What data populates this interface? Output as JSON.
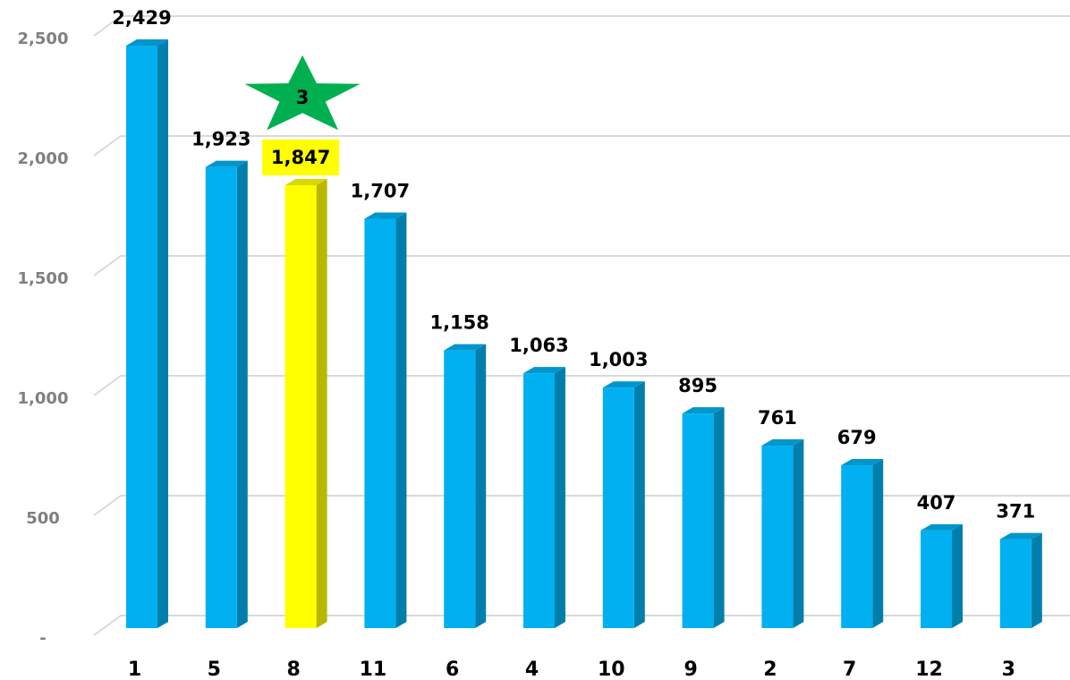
{
  "chart_data": {
    "type": "bar3d",
    "categories": [
      "1",
      "5",
      "8",
      "11",
      "6",
      "4",
      "10",
      "9",
      "2",
      "7",
      "12",
      "3"
    ],
    "values": [
      2429,
      1923,
      1847,
      1707,
      1158,
      1063,
      1003,
      895,
      761,
      679,
      407,
      371
    ],
    "value_labels": [
      "2,429",
      "1,923",
      "1,847",
      "1,707",
      "1,158",
      "1,063",
      "1,003",
      "895",
      "761",
      "679",
      "407",
      "371"
    ],
    "colors": [
      "#00b0f0",
      "#00b0f0",
      "#ffff00",
      "#00b0f0",
      "#00b0f0",
      "#00b0f0",
      "#00b0f0",
      "#00b0f0",
      "#00b0f0",
      "#00b0f0",
      "#00b0f0",
      "#00b0f0"
    ],
    "ylim": [
      0,
      2500
    ],
    "yticks": [
      {
        "value": 0,
        "label": "-"
      },
      500,
      {
        "value": 1000,
        "label": "1,000"
      },
      {
        "value": 1500,
        "label": "1,500"
      },
      {
        "value": 2000,
        "label": "2,000"
      },
      {
        "value": 2500,
        "label": "2,500"
      }
    ],
    "grid": true,
    "annotation": {
      "text": "3",
      "index": 2,
      "color": "#00b050"
    }
  }
}
